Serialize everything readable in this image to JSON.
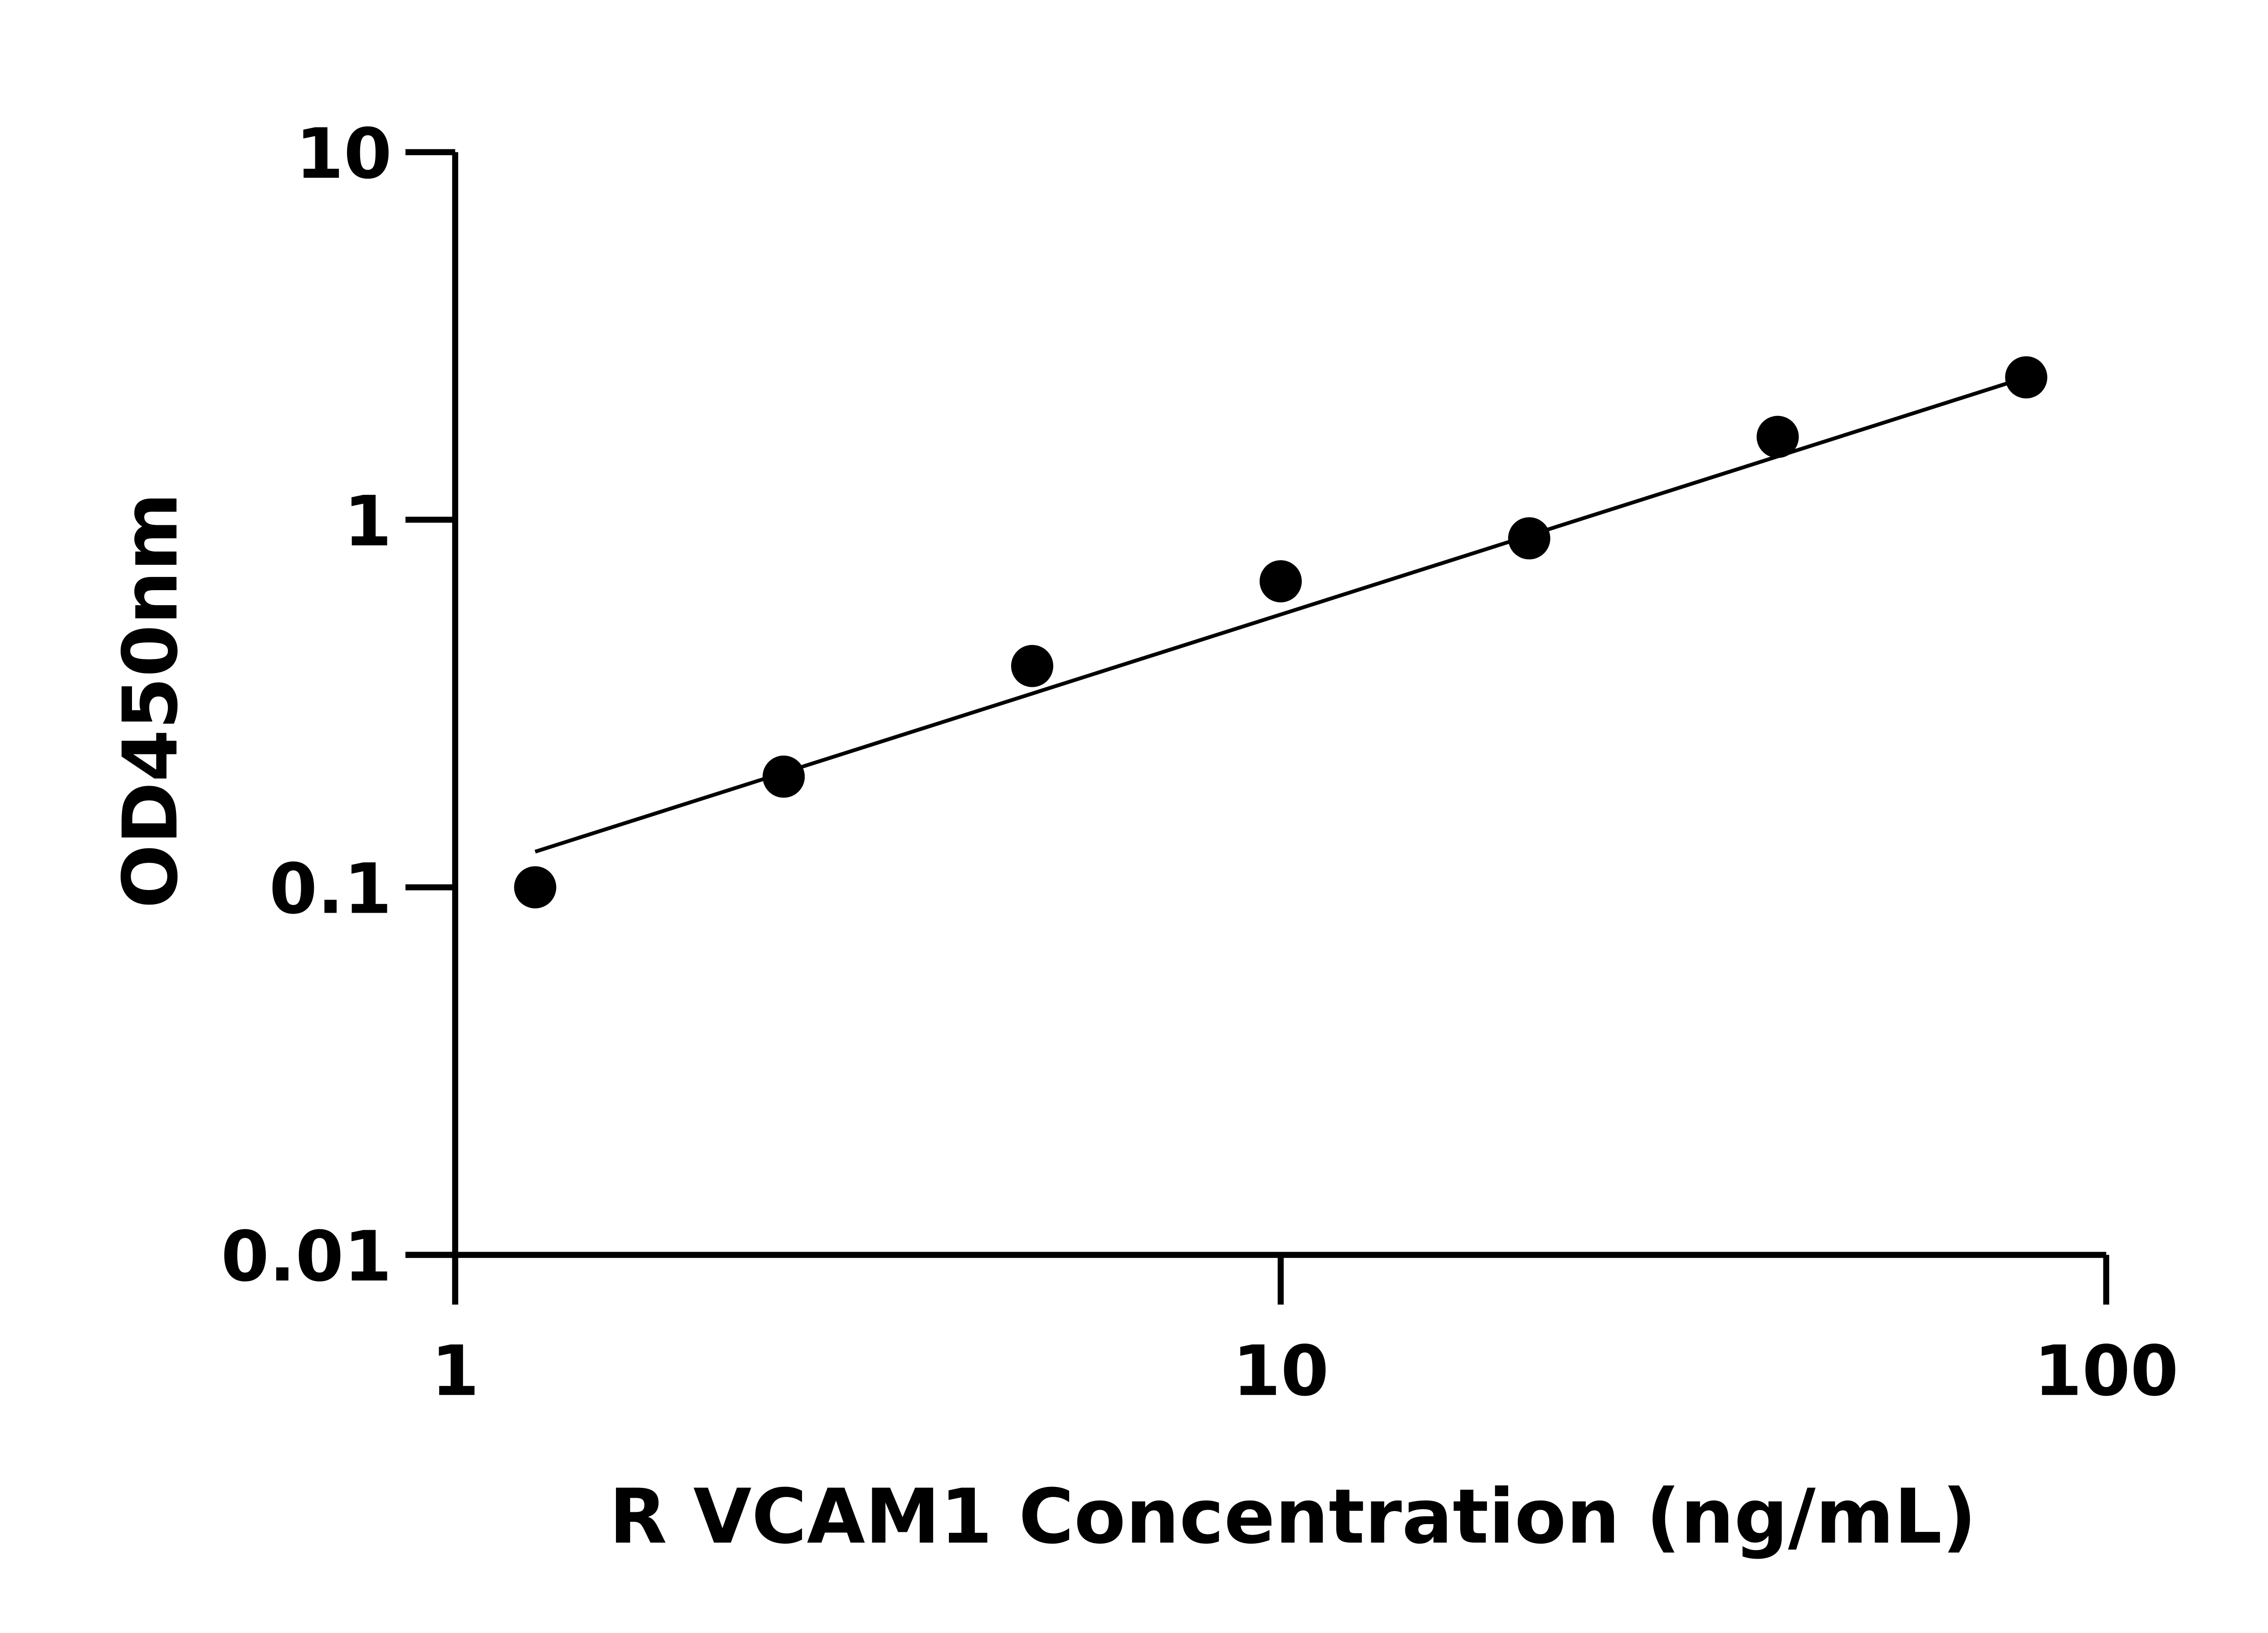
{
  "chart_data": {
    "type": "scatter",
    "title": "",
    "xlabel": "R VCAM1 Concentration (ng/mL)",
    "ylabel": "OD450nm",
    "x_scale": "log",
    "y_scale": "log",
    "xlim": [
      1,
      100
    ],
    "ylim": [
      0.01,
      10
    ],
    "x_ticks": [
      {
        "value": 1,
        "label": "1"
      },
      {
        "value": 10,
        "label": "10"
      },
      {
        "value": 100,
        "label": "100"
      }
    ],
    "y_ticks": [
      {
        "value": 0.01,
        "label": "0.01"
      },
      {
        "value": 0.1,
        "label": "0.1"
      },
      {
        "value": 1,
        "label": "1"
      },
      {
        "value": 10,
        "label": "10"
      }
    ],
    "grid": false,
    "points": [
      {
        "x": 1.25,
        "y": 0.1
      },
      {
        "x": 2.5,
        "y": 0.2
      },
      {
        "x": 5,
        "y": 0.4
      },
      {
        "x": 10,
        "y": 0.68
      },
      {
        "x": 20,
        "y": 0.89
      },
      {
        "x": 40,
        "y": 1.68
      },
      {
        "x": 80,
        "y": 2.44
      }
    ],
    "fit_line": {
      "x_range": [
        1.25,
        80
      ],
      "y_range": [
        0.125,
        2.44
      ]
    },
    "colors": {
      "points": "#000000",
      "line": "#000000",
      "axes": "#000000"
    }
  }
}
